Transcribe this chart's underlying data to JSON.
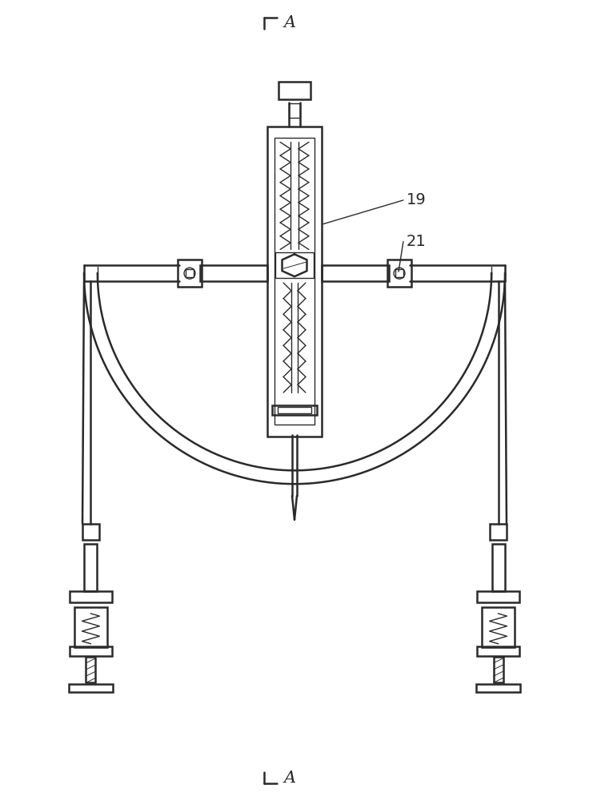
{
  "bg_color": "#ffffff",
  "line_color": "#2a2a2a",
  "label_19": "19",
  "label_21": "21",
  "label_A_top": "A",
  "label_A_bottom": "A",
  "fig_width": 7.36,
  "fig_height": 10.0
}
